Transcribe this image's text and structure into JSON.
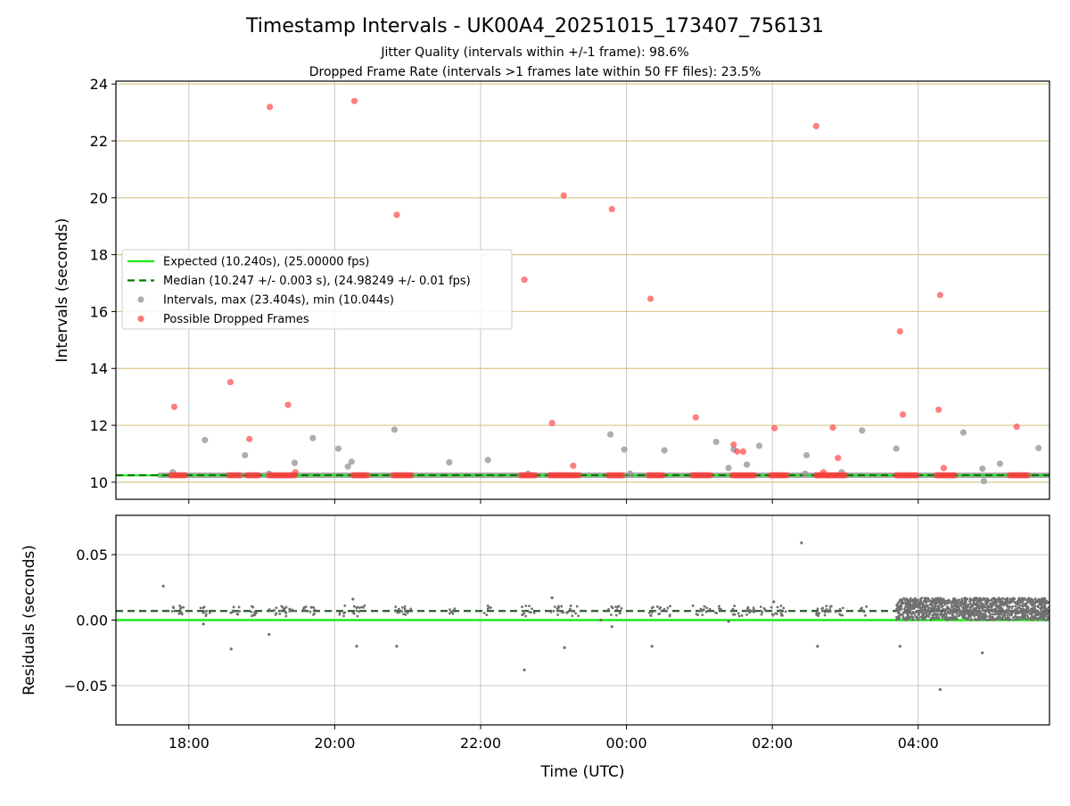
{
  "title": "Timestamp Intervals - UK00A4_20251015_173407_756131",
  "subtitle_1": "Jitter Quality (intervals within +/-1 frame): 98.6%",
  "subtitle_2": "Dropped Frame Rate (intervals >1 frames late within 50 FF files): 23.5%",
  "colors": {
    "expected": "#1aeb1a",
    "median": "#007a00",
    "intervals": "#9a9a9a",
    "dropped": "#ff3b3b",
    "residuals": "#707070",
    "gold_grid": "#d6c78a",
    "grid": "#c8c8c8"
  },
  "chart_data": [
    {
      "type": "scatter",
      "panel": "top",
      "ylabel": "Intervals (seconds)",
      "ylim": [
        9.4,
        24.1
      ],
      "xlim": [
        17.0,
        29.8
      ],
      "yticks": [
        10,
        12,
        14,
        16,
        18,
        20,
        22,
        24
      ],
      "grid": true,
      "legend_position": "center-left",
      "horizontal_gridlines_color": "gold",
      "expected_value": 10.24,
      "median_value": 10.247,
      "legend": [
        {
          "label": "Expected (10.240s), (25.00000 fps)",
          "kind": "solid-line"
        },
        {
          "label": "Median (10.247 +/- 0.003 s), (24.98249 +/- 0.01 fps)",
          "kind": "dashed-line"
        },
        {
          "label": "Intervals, max (23.404s), min (10.044s)",
          "kind": "gray-dot"
        },
        {
          "label": "Possible Dropped Frames",
          "kind": "red-dot"
        }
      ],
      "baseline_segments": [
        [
          17.6,
          29.8
        ]
      ],
      "series": [
        {
          "name": "Intervals, max (23.404s), min (10.044s)",
          "points": [
            [
              17.78,
              10.35
            ],
            [
              18.22,
              11.48
            ],
            [
              18.77,
              10.95
            ],
            [
              19.1,
              10.3
            ],
            [
              19.45,
              10.68
            ],
            [
              19.7,
              11.55
            ],
            [
              20.05,
              11.18
            ],
            [
              20.18,
              10.55
            ],
            [
              20.23,
              10.72
            ],
            [
              20.82,
              11.85
            ],
            [
              21.57,
              10.7
            ],
            [
              22.1,
              10.78
            ],
            [
              22.65,
              10.3
            ],
            [
              23.78,
              11.68
            ],
            [
              23.97,
              11.15
            ],
            [
              24.52,
              11.12
            ],
            [
              25.23,
              11.42
            ],
            [
              25.4,
              10.5
            ],
            [
              25.47,
              11.15
            ],
            [
              25.65,
              10.62
            ],
            [
              25.82,
              11.28
            ],
            [
              26.47,
              10.95
            ],
            [
              26.45,
              10.3
            ],
            [
              27.23,
              11.82
            ],
            [
              27.7,
              11.18
            ],
            [
              28.62,
              11.75
            ],
            [
              28.88,
              10.48
            ],
            [
              28.9,
              10.04
            ],
            [
              29.12,
              10.65
            ],
            [
              29.65,
              11.2
            ],
            [
              26.95,
              10.35
            ],
            [
              24.05,
              10.3
            ]
          ]
        },
        {
          "name": "Possible Dropped Frames",
          "points": [
            [
              17.8,
              12.65
            ],
            [
              18.57,
              13.52
            ],
            [
              18.83,
              11.52
            ],
            [
              19.11,
              23.19
            ],
            [
              19.36,
              12.72
            ],
            [
              19.46,
              10.35
            ],
            [
              20.27,
              23.4
            ],
            [
              20.85,
              19.4
            ],
            [
              22.6,
              17.12
            ],
            [
              22.98,
              12.08
            ],
            [
              23.14,
              20.08
            ],
            [
              23.27,
              10.58
            ],
            [
              23.8,
              19.6
            ],
            [
              24.33,
              16.45
            ],
            [
              24.95,
              12.28
            ],
            [
              25.47,
              11.32
            ],
            [
              25.52,
              11.08
            ],
            [
              25.6,
              11.08
            ],
            [
              26.03,
              11.9
            ],
            [
              26.6,
              22.52
            ],
            [
              26.83,
              11.92
            ],
            [
              26.9,
              10.85
            ],
            [
              26.7,
              10.35
            ],
            [
              27.75,
              15.3
            ],
            [
              27.79,
              12.38
            ],
            [
              28.28,
              12.55
            ],
            [
              28.3,
              16.58
            ],
            [
              28.35,
              10.5
            ],
            [
              29.35,
              11.95
            ]
          ],
          "dense_clusters_at_baseline": [
            [
              17.75,
              17.95
            ],
            [
              18.55,
              18.7
            ],
            [
              18.8,
              18.95
            ],
            [
              19.1,
              19.45
            ],
            [
              20.25,
              20.45
            ],
            [
              20.8,
              21.05
            ],
            [
              22.55,
              22.75
            ],
            [
              22.95,
              23.35
            ],
            [
              23.75,
              23.95
            ],
            [
              24.3,
              24.5
            ],
            [
              24.9,
              25.15
            ],
            [
              25.45,
              25.75
            ],
            [
              25.98,
              26.2
            ],
            [
              26.6,
              27.0
            ],
            [
              27.7,
              27.98
            ],
            [
              28.25,
              28.5
            ],
            [
              29.25,
              29.5
            ]
          ]
        }
      ]
    },
    {
      "type": "scatter",
      "panel": "bottom",
      "ylabel": "Residuals (seconds)",
      "xlabel": "Time (UTC)",
      "ylim": [
        -0.08,
        0.08
      ],
      "xlim": [
        17.0,
        29.8
      ],
      "yticks": [
        -0.05,
        0.0,
        0.05
      ],
      "ytick_labels": [
        "−0.05",
        "0.00",
        "0.05"
      ],
      "xticks": [
        18,
        20,
        22,
        24,
        26,
        28
      ],
      "xtick_labels": [
        "18:00",
        "20:00",
        "22:00",
        "00:00",
        "02:00",
        "04:00"
      ],
      "grid": true,
      "expected_residual": 0.0,
      "median_residual": 0.007,
      "series": [
        {
          "name": "Residuals",
          "outliers": [
            [
              17.65,
              0.026
            ],
            [
              18.58,
              -0.022
            ],
            [
              19.1,
              -0.011
            ],
            [
              20.3,
              -0.02
            ],
            [
              20.85,
              -0.02
            ],
            [
              22.6,
              -0.038
            ],
            [
              23.15,
              -0.021
            ],
            [
              23.8,
              -0.005
            ],
            [
              24.35,
              -0.02
            ],
            [
              26.4,
              0.059
            ],
            [
              26.62,
              -0.02
            ],
            [
              27.75,
              -0.02
            ],
            [
              28.3,
              -0.053
            ],
            [
              28.88,
              -0.025
            ],
            [
              18.2,
              -0.003
            ],
            [
              23.65,
              0.0
            ],
            [
              25.4,
              -0.001
            ],
            [
              26.02,
              0.014
            ],
            [
              20.25,
              0.016
            ],
            [
              22.98,
              0.017
            ]
          ],
          "bands": [
            [
              17.6,
              27.7,
              0.0,
              0.014
            ],
            [
              27.7,
              29.8,
              0.0,
              0.017
            ]
          ]
        }
      ]
    }
  ]
}
